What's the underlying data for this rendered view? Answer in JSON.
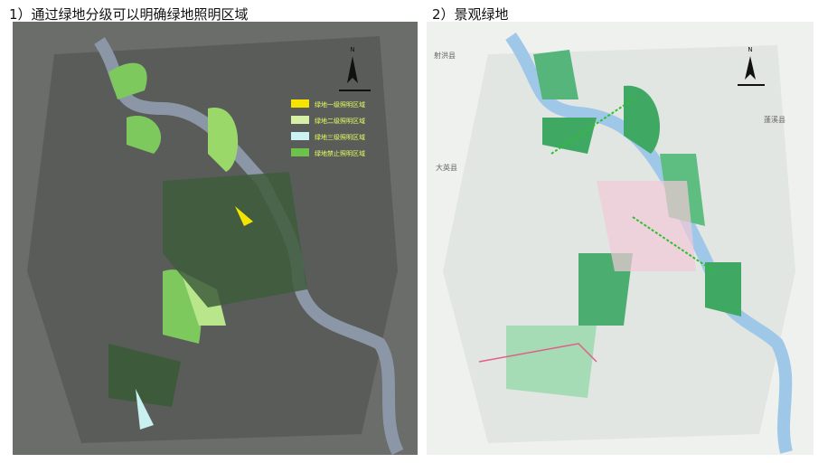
{
  "panels": [
    {
      "title": "1）通过绿地分级可以明确绿地照明区域",
      "compass": "N",
      "legend": [
        "绿地一级照明区域",
        "绿地二级照明区域",
        "绿地三级照明区域",
        "绿地禁止照明区域"
      ]
    },
    {
      "title": "2）景观绿地",
      "compass": "N",
      "places": [
        "射洪县",
        "大英县",
        "蓬溪县"
      ]
    }
  ]
}
